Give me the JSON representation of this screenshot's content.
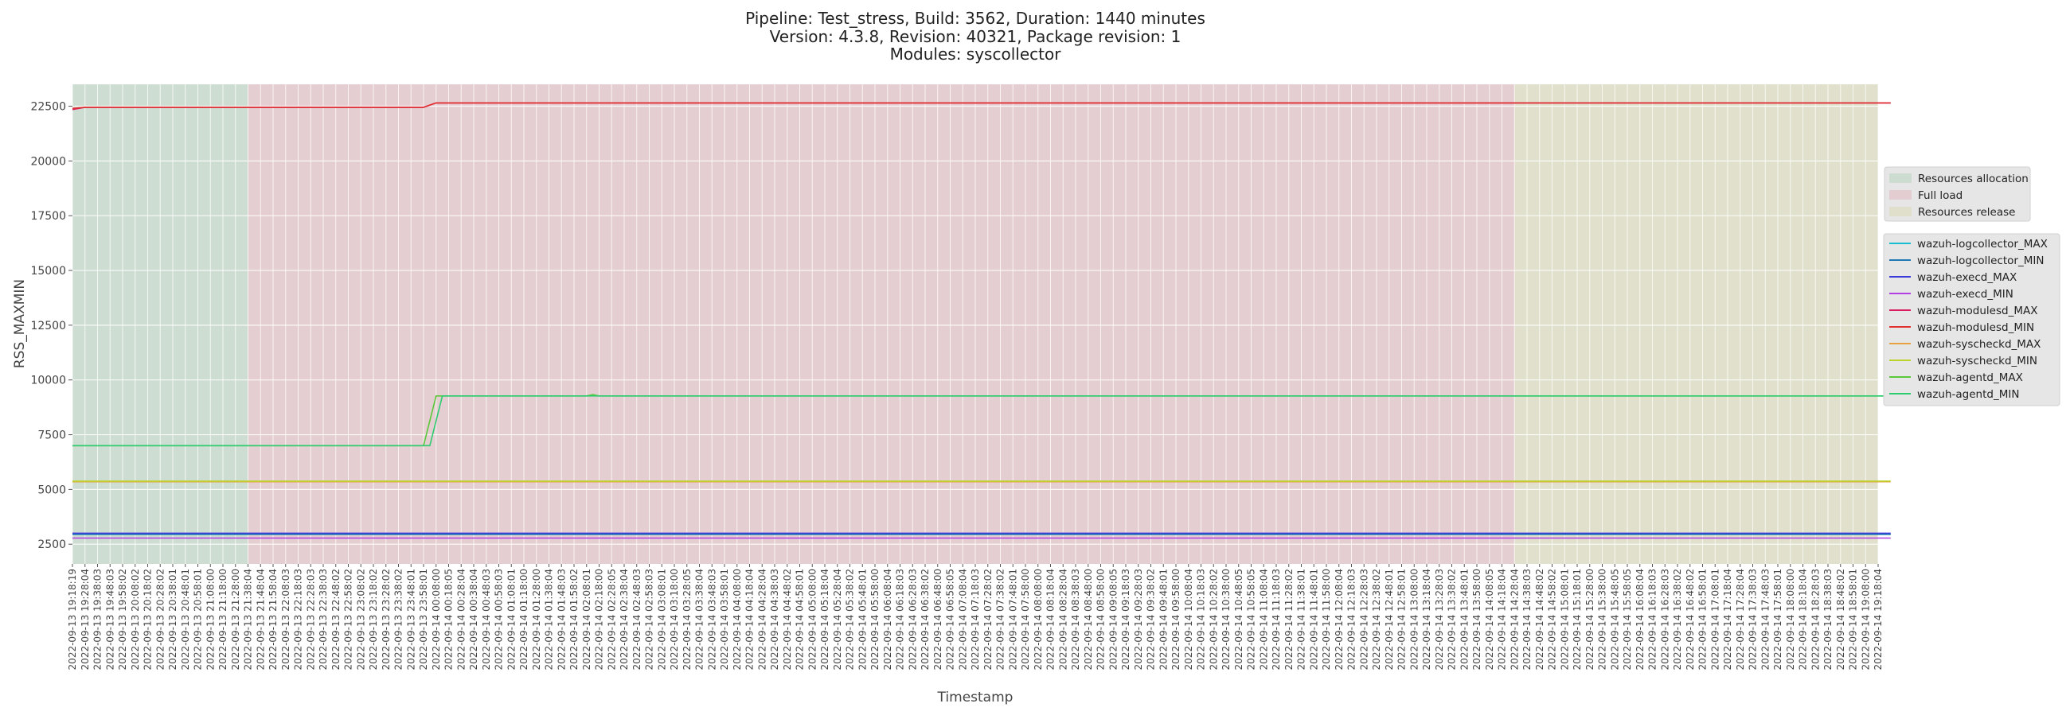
{
  "chart_data": {
    "type": "line",
    "title_lines": [
      "Pipeline: Test_stress, Build: 3562, Duration: 1440 minutes",
      "Version: 4.3.8, Revision: 40321, Package revision: 1",
      "Modules: syscollector"
    ],
    "xlabel": "Timestamp",
    "ylabel": "RSS_MAXMIN",
    "ylim": [
      1600,
      23500
    ],
    "yticks": [
      2500,
      5000,
      7500,
      10000,
      12500,
      15000,
      17500,
      20000,
      22500
    ],
    "grid": true,
    "legend_placement": "right",
    "x": [
      "2022-09-13 19:18:19",
      "2022-09-13 19:28:04",
      "2022-09-13 19:38:03",
      "2022-09-13 19:48:03",
      "2022-09-13 19:58:02",
      "2022-09-13 20:08:02",
      "2022-09-13 20:18:02",
      "2022-09-13 20:28:02",
      "2022-09-13 20:38:01",
      "2022-09-13 20:48:01",
      "2022-09-13 20:58:01",
      "2022-09-13 21:08:00",
      "2022-09-13 21:18:00",
      "2022-09-13 21:28:00",
      "2022-09-13 21:38:04",
      "2022-09-13 21:48:04",
      "2022-09-13 21:58:04",
      "2022-09-13 22:08:03",
      "2022-09-13 22:18:03",
      "2022-09-13 22:28:03",
      "2022-09-13 22:38:03",
      "2022-09-13 22:48:02",
      "2022-09-13 22:58:02",
      "2022-09-13 23:08:02",
      "2022-09-13 23:18:02",
      "2022-09-13 23:28:02",
      "2022-09-13 23:38:02",
      "2022-09-13 23:48:01",
      "2022-09-13 23:58:01",
      "2022-09-14 00:08:00",
      "2022-09-14 00:18:05",
      "2022-09-14 00:28:04",
      "2022-09-14 00:38:04",
      "2022-09-14 00:48:03",
      "2022-09-14 00:58:03",
      "2022-09-14 01:08:01",
      "2022-09-14 01:18:00",
      "2022-09-14 01:28:00",
      "2022-09-14 01:38:04",
      "2022-09-14 01:48:03",
      "2022-09-14 01:58:02",
      "2022-09-14 02:08:01",
      "2022-09-14 02:18:00",
      "2022-09-14 02:28:05",
      "2022-09-14 02:38:04",
      "2022-09-14 02:48:03",
      "2022-09-14 02:58:03",
      "2022-09-14 03:08:01",
      "2022-09-14 03:18:00",
      "2022-09-14 03:28:05",
      "2022-09-14 03:38:04",
      "2022-09-14 03:48:03",
      "2022-09-14 03:58:01",
      "2022-09-14 04:08:00",
      "2022-09-14 04:18:04",
      "2022-09-14 04:28:04",
      "2022-09-14 04:38:03",
      "2022-09-14 04:48:02",
      "2022-09-14 04:58:01",
      "2022-09-14 05:08:00",
      "2022-09-14 05:18:04",
      "2022-09-14 05:28:04",
      "2022-09-14 05:38:02",
      "2022-09-14 05:48:01",
      "2022-09-14 05:58:00",
      "2022-09-14 06:08:04",
      "2022-09-14 06:18:03",
      "2022-09-14 06:28:03",
      "2022-09-14 06:38:02",
      "2022-09-14 06:48:00",
      "2022-09-14 06:58:05",
      "2022-09-14 07:08:04",
      "2022-09-14 07:18:03",
      "2022-09-14 07:28:02",
      "2022-09-14 07:38:02",
      "2022-09-14 07:48:01",
      "2022-09-14 07:58:00",
      "2022-09-14 08:08:00",
      "2022-09-14 08:18:04",
      "2022-09-14 08:28:04",
      "2022-09-14 08:38:03",
      "2022-09-14 08:48:00",
      "2022-09-14 08:58:00",
      "2022-09-14 09:08:05",
      "2022-09-14 09:18:03",
      "2022-09-14 09:28:03",
      "2022-09-14 09:38:02",
      "2022-09-14 09:48:01",
      "2022-09-14 09:58:00",
      "2022-09-14 10:08:04",
      "2022-09-14 10:18:03",
      "2022-09-14 10:28:02",
      "2022-09-14 10:38:00",
      "2022-09-14 10:48:05",
      "2022-09-14 10:58:05",
      "2022-09-14 11:08:04",
      "2022-09-14 11:18:03",
      "2022-09-14 11:28:02",
      "2022-09-14 11:38:01",
      "2022-09-14 11:48:01",
      "2022-09-14 11:58:00",
      "2022-09-14 12:08:04",
      "2022-09-14 12:18:03",
      "2022-09-14 12:28:03",
      "2022-09-14 12:38:02",
      "2022-09-14 12:48:01",
      "2022-09-14 12:58:01",
      "2022-09-14 13:08:00",
      "2022-09-14 13:18:04",
      "2022-09-14 13:28:03",
      "2022-09-14 13:38:02",
      "2022-09-14 13:48:01",
      "2022-09-14 13:58:00",
      "2022-09-14 14:08:05",
      "2022-09-14 14:18:04",
      "2022-09-14 14:28:04",
      "2022-09-14 14:38:03",
      "2022-09-14 14:48:02",
      "2022-09-14 14:58:02",
      "2022-09-14 15:08:01",
      "2022-09-14 15:18:01",
      "2022-09-14 15:28:00",
      "2022-09-14 15:38:00",
      "2022-09-14 15:48:05",
      "2022-09-14 15:58:05",
      "2022-09-14 16:08:04",
      "2022-09-14 16:18:03",
      "2022-09-14 16:28:03",
      "2022-09-14 16:38:02",
      "2022-09-14 16:48:02",
      "2022-09-14 16:58:01",
      "2022-09-14 17:08:01",
      "2022-09-14 17:18:04",
      "2022-09-14 17:28:04",
      "2022-09-14 17:38:03",
      "2022-09-14 17:48:03",
      "2022-09-14 17:58:01",
      "2022-09-14 18:08:00",
      "2022-09-14 18:18:04",
      "2022-09-14 18:28:03",
      "2022-09-14 18:38:03",
      "2022-09-14 18:48:02",
      "2022-09-14 18:58:01",
      "2022-09-14 19:08:00",
      "2022-09-14 19:18:04"
    ],
    "phases": [
      {
        "name": "Resources allocation",
        "start": "2022-09-13 19:18:19",
        "end": "2022-09-13 21:38:04",
        "color": "#c4d8c8"
      },
      {
        "name": "Full load",
        "start": "2022-09-13 21:38:04",
        "end": "2022-09-14 14:28:04",
        "color": "#e3c4c8"
      },
      {
        "name": "Resources release",
        "start": "2022-09-14 14:28:04",
        "end": "2022-09-14 19:18:04",
        "color": "#dcdcc2"
      }
    ],
    "series": [
      {
        "name": "wazuh-logcollector_MAX",
        "color": "#17becf",
        "segments": [
          [
            0,
            2950
          ],
          [
            145,
            2950
          ]
        ]
      },
      {
        "name": "wazuh-logcollector_MIN",
        "color": "#1f77b4",
        "segments": [
          [
            0,
            2950
          ],
          [
            145,
            2950
          ]
        ]
      },
      {
        "name": "wazuh-execd_MAX",
        "color": "#3b3bd9",
        "segments": [
          [
            0,
            3000
          ],
          [
            145,
            3000
          ]
        ]
      },
      {
        "name": "wazuh-execd_MIN",
        "color": "#b03ee0",
        "segments": [
          [
            0,
            2780
          ],
          [
            145,
            2780
          ]
        ]
      },
      {
        "name": "wazuh-modulesd_MAX",
        "color": "#d81b60",
        "segments": [
          [
            0,
            22350
          ],
          [
            1,
            22450
          ],
          [
            28,
            22450
          ],
          [
            29,
            22650
          ],
          [
            145,
            22650
          ]
        ]
      },
      {
        "name": "wazuh-modulesd_MIN",
        "color": "#e03030",
        "segments": [
          [
            0,
            22400
          ],
          [
            1,
            22450
          ],
          [
            28,
            22450
          ],
          [
            29,
            22650
          ],
          [
            145,
            22650
          ]
        ]
      },
      {
        "name": "wazuh-syscheckd_MAX",
        "color": "#e6a140",
        "segments": [
          [
            0,
            5350
          ],
          [
            145,
            5350
          ]
        ]
      },
      {
        "name": "wazuh-syscheckd_MIN",
        "color": "#bcd42a",
        "segments": [
          [
            0,
            5380
          ],
          [
            145,
            5380
          ]
        ]
      },
      {
        "name": "wazuh-agentd_MAX",
        "color": "#5ac83a",
        "segments": [
          [
            0,
            7000
          ],
          [
            28,
            7000
          ],
          [
            29,
            9270
          ],
          [
            41,
            9270
          ],
          [
            41.5,
            9330
          ],
          [
            42,
            9270
          ],
          [
            145,
            9270
          ]
        ]
      },
      {
        "name": "wazuh-agentd_MIN",
        "color": "#2ecc71",
        "segments": [
          [
            0,
            7000
          ],
          [
            28.5,
            7000
          ],
          [
            29.5,
            9270
          ],
          [
            145,
            9270
          ]
        ]
      }
    ]
  }
}
